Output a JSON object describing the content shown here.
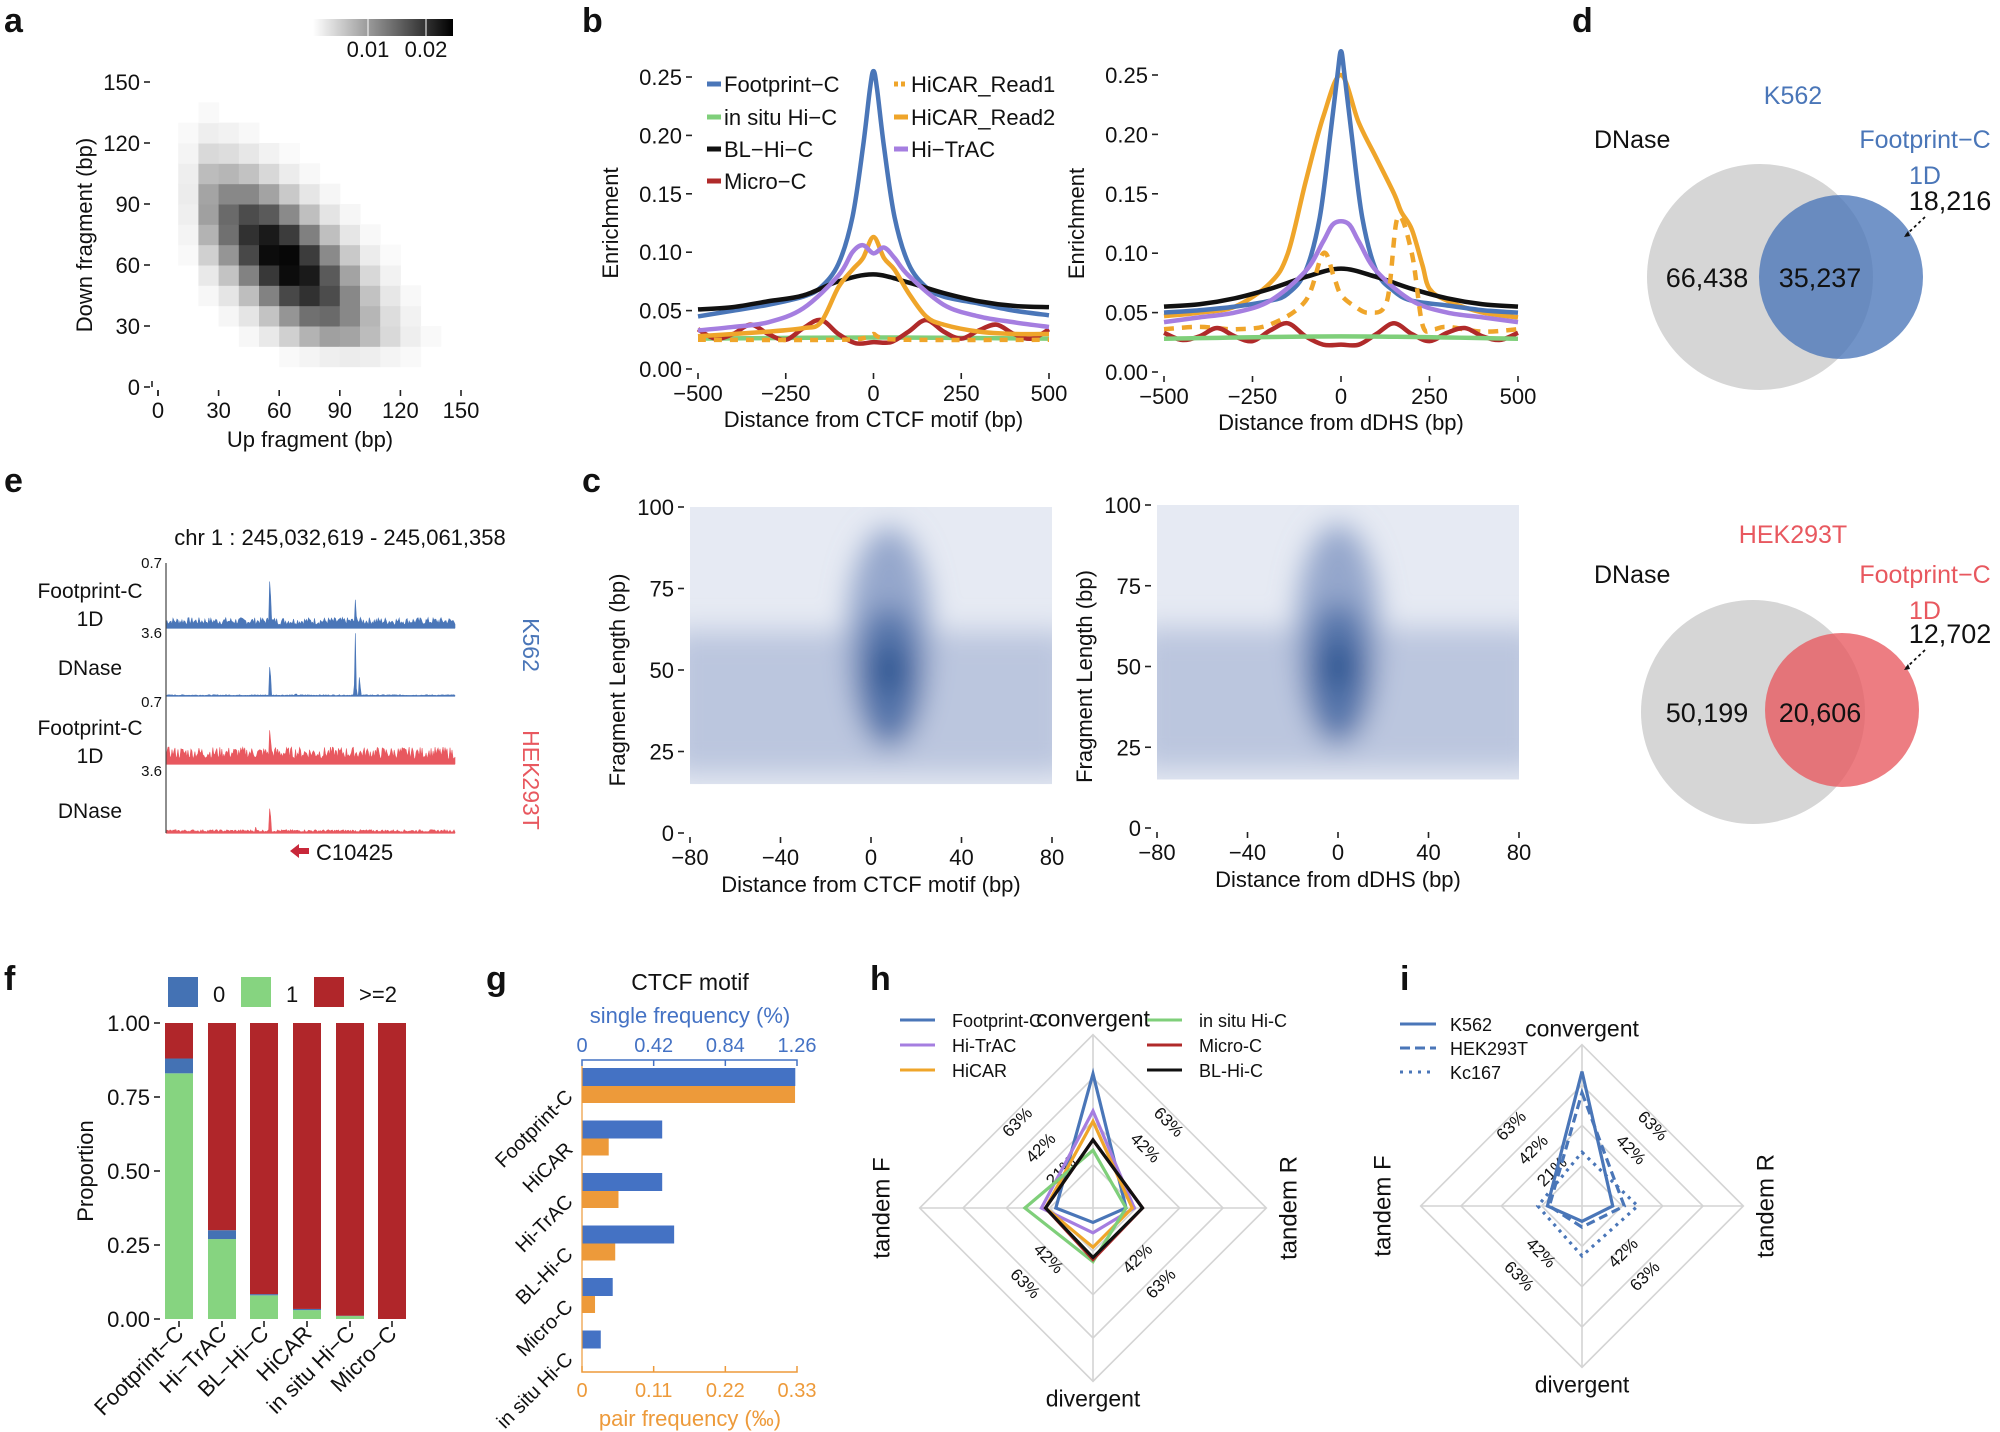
{
  "panels": {
    "a": {
      "label": "a"
    },
    "b": {
      "label": "b"
    },
    "c": {
      "label": "c"
    },
    "d": {
      "label": "d"
    },
    "e": {
      "label": "e"
    },
    "f": {
      "label": "f"
    },
    "g": {
      "label": "g"
    },
    "h": {
      "label": "h"
    },
    "i": {
      "label": "i"
    }
  },
  "colors": {
    "footprint": "#4a76b8",
    "insitu": "#7fcf7a",
    "blhic": "#111111",
    "microc": "#b02a2a",
    "hicar": "#efa52a",
    "hitrac": "#a57ee0",
    "k562": "#4a76b8",
    "hek": "#e8585f",
    "gray": "#d4d4d4",
    "bar_blue": "#4472c4",
    "bar_orange": "#ed9a3a",
    "f_zero": "#4472b4",
    "f_one": "#86d480",
    "f_two": "#b0262a"
  },
  "chart_data": [
    {
      "id": "a",
      "type": "heatmap",
      "xlabel": "Up fragment (bp)",
      "ylabel": "Down fragment (bp)",
      "xlim": [
        0,
        150
      ],
      "ylim": [
        0,
        150
      ],
      "xticks": [
        "0",
        "30",
        "60",
        "90",
        "120",
        "150"
      ],
      "yticks": [
        "0",
        "30",
        "60",
        "90",
        "120",
        "150"
      ],
      "colorbar": {
        "ticks": [
          "0.01",
          "0.02"
        ],
        "range": [
          0,
          0.025
        ]
      },
      "bin_bp": 10,
      "note": "density peaks along the anti-diagonal (up + down ≈ 120 bp), max ≈ 0.025 near (60,60)"
    },
    {
      "id": "b-left",
      "type": "line",
      "xlabel": "Distance from CTCF motif (bp)",
      "ylabel": "Enrichment",
      "xlim": [
        -500,
        500
      ],
      "ylim": [
        0,
        0.25
      ],
      "xticks": [
        "−500",
        "−250",
        "0",
        "250",
        "500"
      ],
      "yticks": [
        "0.00",
        "0.05",
        "0.10",
        "0.15",
        "0.20",
        "0.25"
      ],
      "legend": [
        "Footprint−C",
        "in situ Hi−C",
        "BL−Hi−C",
        "Micro−C",
        "HiCAR_Read1",
        "HiCAR_Read2",
        "Hi−TrAC"
      ],
      "series": [
        {
          "name": "Footprint−C",
          "key": "footprint",
          "x": [
            -500,
            -400,
            -300,
            -200,
            -150,
            -100,
            -60,
            -30,
            -10,
            0,
            10,
            30,
            60,
            100,
            150,
            200,
            300,
            400,
            500
          ],
          "y": [
            0.045,
            0.05,
            0.055,
            0.062,
            0.07,
            0.09,
            0.13,
            0.19,
            0.24,
            0.255,
            0.24,
            0.19,
            0.13,
            0.09,
            0.07,
            0.062,
            0.056,
            0.05,
            0.046
          ]
        },
        {
          "name": "in situ Hi−C",
          "key": "insitu",
          "x": [
            -500,
            0,
            500
          ],
          "y": [
            0.026,
            0.027,
            0.026
          ]
        },
        {
          "name": "BL−Hi−C",
          "key": "blhic",
          "x": [
            -500,
            -400,
            -300,
            -200,
            -100,
            0,
            100,
            200,
            300,
            400,
            500
          ],
          "y": [
            0.051,
            0.053,
            0.058,
            0.063,
            0.075,
            0.081,
            0.074,
            0.065,
            0.058,
            0.054,
            0.053
          ]
        },
        {
          "name": "Micro−C",
          "key": "microc",
          "x": [
            -500,
            -450,
            -400,
            -350,
            -300,
            -250,
            -200,
            -150,
            -100,
            -50,
            0,
            50,
            100,
            150,
            200,
            250,
            300,
            350,
            400,
            450,
            500
          ],
          "y": [
            0.034,
            0.026,
            0.03,
            0.038,
            0.03,
            0.025,
            0.035,
            0.042,
            0.03,
            0.022,
            0.023,
            0.023,
            0.032,
            0.042,
            0.032,
            0.026,
            0.033,
            0.038,
            0.03,
            0.026,
            0.034
          ]
        },
        {
          "name": "HiCAR_Read1",
          "key": "hicar",
          "dash": "8,8",
          "x": [
            -500,
            -100,
            -20,
            0,
            20,
            100,
            500
          ],
          "y": [
            0.025,
            0.025,
            0.027,
            0.03,
            0.027,
            0.025,
            0.025
          ]
        },
        {
          "name": "HiCAR_Read2",
          "key": "hicar",
          "x": [
            -500,
            -300,
            -200,
            -150,
            -100,
            -60,
            -30,
            0,
            30,
            60,
            100,
            150,
            200,
            300,
            400,
            500
          ],
          "y": [
            0.028,
            0.032,
            0.035,
            0.04,
            0.07,
            0.085,
            0.095,
            0.113,
            0.095,
            0.085,
            0.065,
            0.045,
            0.038,
            0.032,
            0.03,
            0.03
          ]
        },
        {
          "name": "Hi−TrAC",
          "key": "hitrac",
          "x": [
            -500,
            -400,
            -300,
            -200,
            -100,
            -60,
            -30,
            0,
            30,
            60,
            100,
            200,
            300,
            400,
            500
          ],
          "y": [
            0.033,
            0.036,
            0.04,
            0.052,
            0.08,
            0.1,
            0.106,
            0.099,
            0.104,
            0.095,
            0.08,
            0.055,
            0.045,
            0.04,
            0.036
          ]
        }
      ]
    },
    {
      "id": "b-right",
      "type": "line",
      "xlabel": "Distance from dDHS (bp)",
      "ylabel": "Enrichment",
      "xlim": [
        -500,
        500
      ],
      "ylim": [
        0,
        0.25
      ],
      "xticks": [
        "−500",
        "−250",
        "0",
        "250",
        "500"
      ],
      "yticks": [
        "0.00",
        "0.05",
        "0.10",
        "0.15",
        "0.20",
        "0.25"
      ],
      "series": [
        {
          "name": "HiCAR_Read2",
          "key": "hicar",
          "x": [
            -500,
            -400,
            -300,
            -200,
            -150,
            -100,
            -50,
            0,
            50,
            100,
            150,
            170,
            200,
            230,
            250,
            300,
            400,
            500
          ],
          "y": [
            0.047,
            0.05,
            0.055,
            0.075,
            0.1,
            0.16,
            0.215,
            0.25,
            0.21,
            0.18,
            0.15,
            0.135,
            0.12,
            0.09,
            0.07,
            0.06,
            0.05,
            0.046
          ]
        },
        {
          "name": "Footprint−C",
          "key": "footprint",
          "x": [
            -500,
            -400,
            -300,
            -200,
            -150,
            -100,
            -60,
            -30,
            -10,
            0,
            10,
            30,
            60,
            100,
            150,
            200,
            300,
            400,
            500
          ],
          "y": [
            0.05,
            0.052,
            0.055,
            0.06,
            0.066,
            0.085,
            0.13,
            0.2,
            0.25,
            0.27,
            0.25,
            0.2,
            0.13,
            0.085,
            0.068,
            0.06,
            0.056,
            0.052,
            0.05
          ]
        },
        {
          "name": "BL−Hi−C",
          "key": "blhic",
          "x": [
            -500,
            -400,
            -300,
            -200,
            -100,
            0,
            100,
            200,
            300,
            400,
            500
          ],
          "y": [
            0.055,
            0.057,
            0.062,
            0.07,
            0.08,
            0.087,
            0.08,
            0.07,
            0.062,
            0.057,
            0.055
          ]
        },
        {
          "name": "Hi−TrAC",
          "key": "hitrac",
          "x": [
            -500,
            -400,
            -300,
            -200,
            -100,
            -50,
            -20,
            20,
            50,
            100,
            200,
            300,
            400,
            500
          ],
          "y": [
            0.042,
            0.046,
            0.05,
            0.06,
            0.085,
            0.11,
            0.125,
            0.125,
            0.11,
            0.085,
            0.06,
            0.05,
            0.046,
            0.042
          ]
        },
        {
          "name": "HiCAR_Read1",
          "key": "hicar",
          "dash": "10,8",
          "x": [
            -500,
            -400,
            -300,
            -200,
            -100,
            -50,
            -20,
            0,
            40,
            80,
            130,
            160,
            200,
            230,
            260,
            300,
            400,
            500
          ],
          "y": [
            0.036,
            0.038,
            0.036,
            0.04,
            0.06,
            0.1,
            0.08,
            0.065,
            0.055,
            0.05,
            0.06,
            0.13,
            0.1,
            0.04,
            0.036,
            0.038,
            0.034,
            0.036
          ]
        },
        {
          "name": "Micro−C",
          "key": "microc",
          "x": [
            -500,
            -450,
            -400,
            -350,
            -300,
            -250,
            -200,
            -150,
            -100,
            -50,
            0,
            50,
            100,
            150,
            200,
            250,
            300,
            350,
            400,
            450,
            500
          ],
          "y": [
            0.033,
            0.027,
            0.03,
            0.037,
            0.03,
            0.026,
            0.035,
            0.041,
            0.03,
            0.023,
            0.023,
            0.023,
            0.032,
            0.041,
            0.032,
            0.026,
            0.033,
            0.037,
            0.03,
            0.027,
            0.033
          ]
        },
        {
          "name": "in situ Hi−C",
          "key": "insitu",
          "x": [
            -500,
            0,
            500
          ],
          "y": [
            0.028,
            0.03,
            0.028
          ]
        }
      ]
    },
    {
      "id": "c-left",
      "type": "heatmap",
      "xlabel": "Distance from CTCF motif (bp)",
      "ylabel": "Fragment Length (bp)",
      "xlim": [
        -80,
        80
      ],
      "ylim": [
        0,
        100
      ],
      "xticks": [
        "−80",
        "−40",
        "0",
        "40",
        "80"
      ],
      "yticks": [
        "0",
        "25",
        "50",
        "75",
        "100"
      ],
      "peak": {
        "x": 8,
        "y": 50
      }
    },
    {
      "id": "c-right",
      "type": "heatmap",
      "xlabel": "Distance from dDHS (bp)",
      "ylabel": "Fragment Length (bp)",
      "xlim": [
        -80,
        80
      ],
      "ylim": [
        0,
        100
      ],
      "xticks": [
        "−80",
        "−40",
        "0",
        "40",
        "80"
      ],
      "yticks": [
        "0",
        "25",
        "50",
        "75",
        "100"
      ],
      "peak": {
        "x": 0,
        "y": 50
      }
    },
    {
      "id": "d",
      "type": "venn",
      "sets": [
        {
          "title": "K562",
          "left_label": "DNase",
          "right_label": [
            "Footprint−C",
            "1D"
          ],
          "dnase_only": "66,438",
          "overlap": "35,237",
          "footprint_only": "18,216",
          "color_key": "k562"
        },
        {
          "title": "HEK293T",
          "left_label": "DNase",
          "right_label": [
            "Footprint−C",
            "1D"
          ],
          "dnase_only": "50,199",
          "overlap": "20,606",
          "footprint_only": "12,702",
          "color_key": "hek"
        }
      ]
    },
    {
      "id": "e",
      "type": "genome-track",
      "region": "chr 1 : 245,032,619 - 245,061,358",
      "gene": "C10425",
      "tracks": [
        {
          "label": [
            "Footprint-C",
            "1D"
          ],
          "scale": "0.7",
          "cell": "K562",
          "color_key": "k562",
          "noise": 0.12,
          "peaks": [
            {
              "pos": 0.36,
              "h": 1.0
            },
            {
              "pos": 0.655,
              "h": 0.45
            },
            {
              "pos": 0.66,
              "h": 0.25
            }
          ]
        },
        {
          "label": [
            "DNase"
          ],
          "scale": "3.6",
          "cell": "K562",
          "color_key": "k562",
          "noise": 0.015,
          "peaks": [
            {
              "pos": 0.36,
              "h": 0.62
            },
            {
              "pos": 0.655,
              "h": 1.0
            },
            {
              "pos": 0.67,
              "h": 0.35
            },
            {
              "pos": 0.45,
              "h": 0.05
            }
          ]
        },
        {
          "label": [
            "Footprint-C",
            "1D"
          ],
          "scale": "0.7",
          "cell": "HEK293T",
          "color_key": "hek",
          "noise": 0.2,
          "peaks": [
            {
              "pos": 0.36,
              "h": 0.75
            }
          ]
        },
        {
          "label": [
            "DNase"
          ],
          "scale": "3.6",
          "cell": "HEK293T",
          "color_key": "hek",
          "noise": 0.04,
          "peaks": [
            {
              "pos": 0.36,
              "h": 0.55
            },
            {
              "pos": 0.31,
              "h": 0.1
            }
          ]
        }
      ],
      "cell_labels": [
        "K562",
        "HEK293T"
      ]
    },
    {
      "id": "f",
      "type": "bar",
      "stacked": true,
      "ylabel": "Proportion",
      "ylim": [
        0,
        1
      ],
      "yticks": [
        "0.00",
        "0.25",
        "0.50",
        "0.75",
        "1.00"
      ],
      "categories": [
        "Footprint−C",
        "Hi−TrAC",
        "BL−Hi−C",
        "HiCAR",
        "in situ Hi−C",
        "Micro−C"
      ],
      "legend": [
        "0",
        "1",
        ">=2"
      ],
      "series": [
        {
          "name": "1",
          "color_key": "f_one",
          "values": [
            0.83,
            0.27,
            0.08,
            0.03,
            0.01,
            0.0
          ]
        },
        {
          "name": "0",
          "color_key": "f_zero",
          "values": [
            0.05,
            0.03,
            0.004,
            0.004,
            0.001,
            0.0
          ]
        },
        {
          "name": ">=2",
          "color_key": "f_two",
          "values": [
            0.12,
            0.7,
            0.916,
            0.966,
            0.989,
            1.0
          ]
        }
      ]
    },
    {
      "id": "g",
      "type": "bar",
      "orientation": "horizontal",
      "title": "CTCF motif",
      "categories": [
        "Footprint-C",
        "HiCAR",
        "Hi-TrAC",
        "BL-Hi-C",
        "Micro-C",
        "in situ Hi-C"
      ],
      "series": [
        {
          "name": "single frequency (%)",
          "color_key": "bar_blue",
          "axis": "top",
          "xlim": [
            0,
            1.26
          ],
          "xticks": [
            "0",
            "0.42",
            "0.84",
            "1.26"
          ],
          "values": [
            1.25,
            0.47,
            0.47,
            0.54,
            0.18,
            0.11
          ]
        },
        {
          "name": "pair frequency (‰)",
          "color_key": "bar_orange",
          "axis": "bottom",
          "xlim": [
            0,
            0.33
          ],
          "xticks": [
            "0",
            "0.11",
            "0.22",
            "0.33"
          ],
          "values": [
            0.327,
            0.041,
            0.056,
            0.051,
            0.02,
            0.0
          ]
        }
      ]
    },
    {
      "id": "h",
      "type": "radar",
      "axes": [
        "convergent",
        "tandem R",
        "divergent",
        "tandem F"
      ],
      "rings": [
        "21%",
        "42%",
        "63%"
      ],
      "rmax": 63,
      "series": [
        {
          "name": "Footprint-C",
          "color_key": "footprint",
          "values": [
            65,
            16,
            7,
            18
          ]
        },
        {
          "name": "Hi-TrAC",
          "color_key": "hitrac",
          "values": [
            47,
            20,
            12,
            25
          ]
        },
        {
          "name": "HiCAR",
          "color_key": "hicar",
          "values": [
            42,
            19,
            19,
            23
          ]
        },
        {
          "name": "in situ Hi-C",
          "color_key": "insitu",
          "values": [
            28,
            16,
            26,
            33
          ]
        },
        {
          "name": "Micro-C",
          "color_key": "microc",
          "values": [
            33,
            24,
            25,
            23
          ]
        },
        {
          "name": "BL-Hi-C",
          "color_key": "blhic",
          "values": [
            33,
            24,
            24,
            23
          ]
        }
      ]
    },
    {
      "id": "i",
      "type": "radar",
      "axes": [
        "convergent",
        "tandem R",
        "divergent",
        "tandem F"
      ],
      "rings": [
        "21%",
        "42%",
        "63%"
      ],
      "rmax": 63,
      "series": [
        {
          "name": "K562",
          "dash": "",
          "values": [
            70,
            16,
            8,
            18
          ]
        },
        {
          "name": "HEK293T",
          "dash": "16,9",
          "values": [
            59,
            22,
            11,
            17
          ]
        },
        {
          "name": "Kc167",
          "dash": "5,9",
          "values": [
            28,
            29,
            26,
            23
          ]
        }
      ]
    }
  ]
}
